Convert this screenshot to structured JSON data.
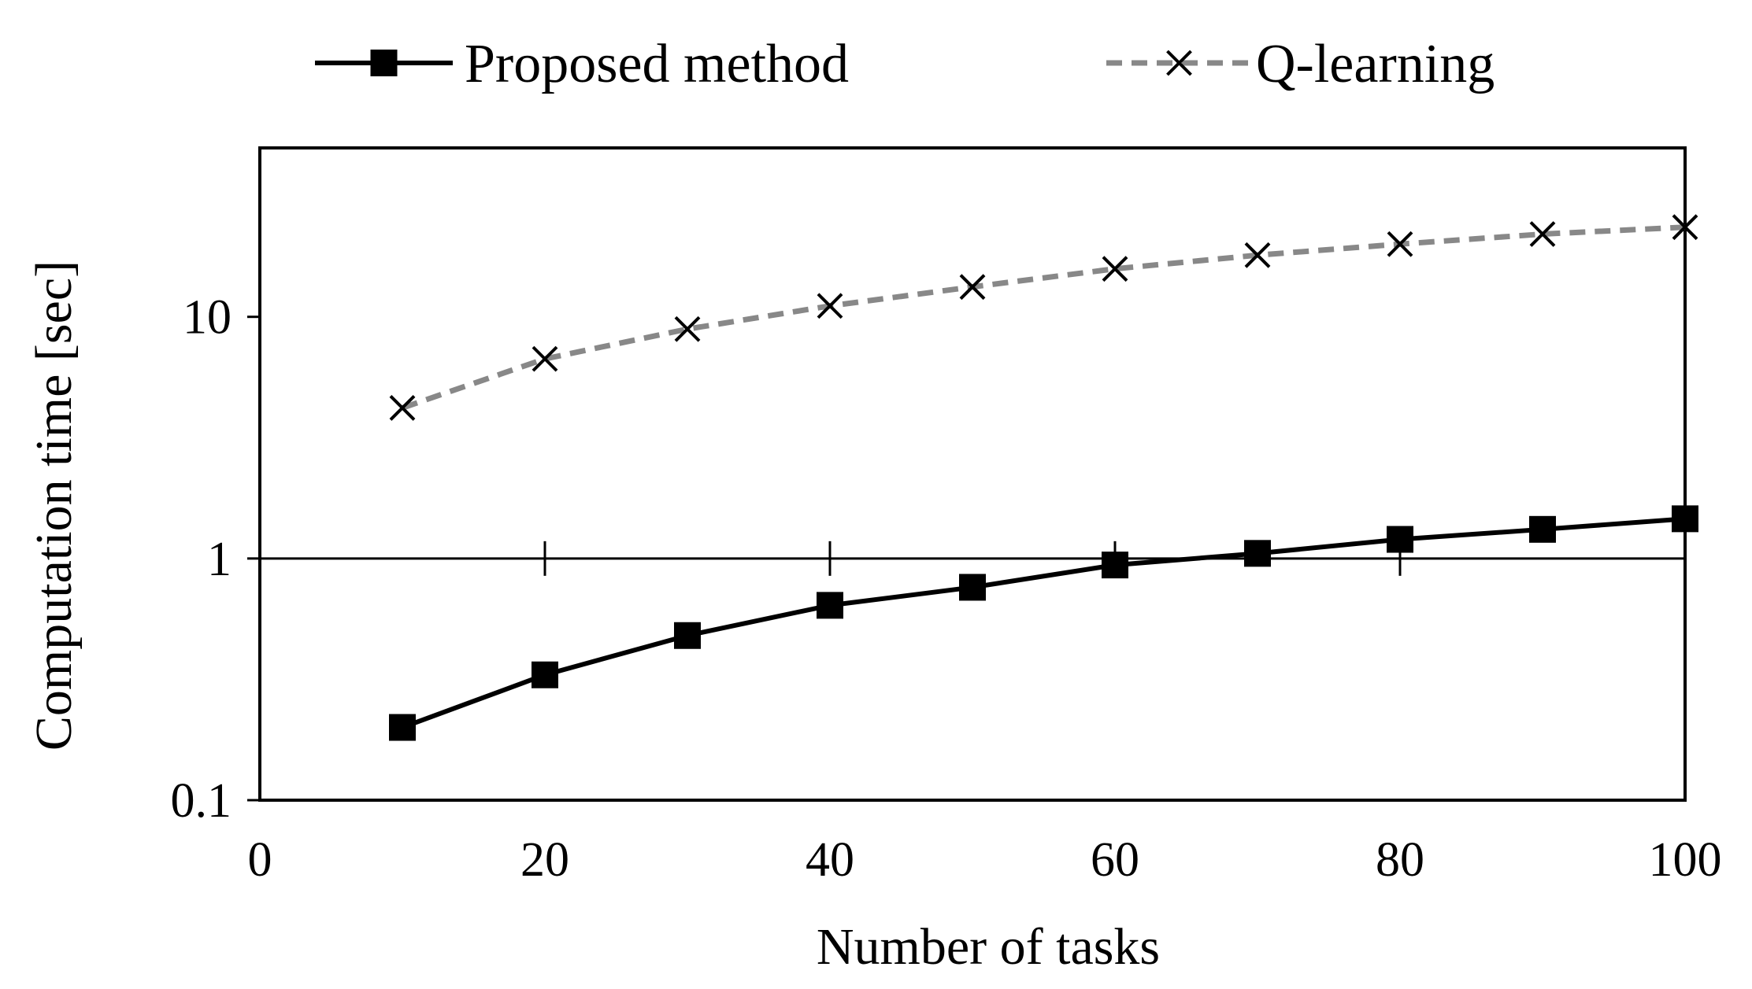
{
  "chart_data": {
    "type": "line",
    "title": "",
    "xlabel": "Number of tasks",
    "ylabel": "Computation time [sec]",
    "xlim": [
      0,
      100
    ],
    "ylim": [
      0.1,
      50
    ],
    "yscale": "log",
    "xticks": [
      0,
      20,
      40,
      60,
      80,
      100
    ],
    "xtick_labels": [
      "0",
      "20",
      "40",
      "60",
      "80",
      "100"
    ],
    "yticks": [
      0.1,
      1,
      10
    ],
    "ytick_labels": [
      "0.1",
      "1",
      "10"
    ],
    "legend_position": "top",
    "grid": false,
    "x": [
      10,
      20,
      30,
      40,
      50,
      60,
      70,
      80,
      90,
      100
    ],
    "series": [
      {
        "name": "Proposed method",
        "values": [
          0.2,
          0.33,
          0.48,
          0.64,
          0.76,
          0.94,
          1.05,
          1.2,
          1.32,
          1.46
        ],
        "color": "#000000",
        "line_style": "solid",
        "marker": "square"
      },
      {
        "name": "Q-learning",
        "values": [
          4.2,
          6.7,
          8.9,
          11.1,
          13.3,
          15.8,
          18.0,
          20.0,
          22.0,
          23.5
        ],
        "color": "#888888",
        "line_style": "dashed",
        "marker": "x"
      }
    ]
  }
}
